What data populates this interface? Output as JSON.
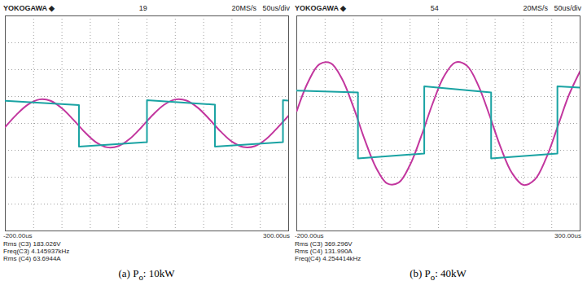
{
  "chart_data": [
    {
      "type": "line",
      "header": {
        "brand": "YOKOGAWA ◆",
        "record": "19",
        "sample_rate": "20MS/s",
        "time_div": "50us/div"
      },
      "x_start_label": "-200.00us",
      "x_end_label": "300.00us",
      "measurements": [
        "Rms (C3) 183.026V",
        "Freq(C3) 4.145937kHz",
        "Rms (C4) 63.6944A"
      ],
      "caption": {
        "prefix": "(a) P",
        "subscript": "o",
        "suffix": ": 10kW"
      },
      "xlim": [
        -200,
        300
      ],
      "xticks": [
        -200,
        -150,
        -100,
        -50,
        0,
        50,
        100,
        150,
        200,
        250,
        300
      ],
      "ylim": [
        -4,
        4
      ],
      "yticks": [
        -4,
        -3,
        -2,
        -1,
        0,
        1,
        2,
        3,
        4
      ],
      "grid": true,
      "tick_labels": false,
      "series": [
        {
          "color": "#c2369e",
          "line_style": "smooth",
          "x": [
            -200,
            -180,
            -160,
            -140,
            -120,
            -100,
            -80,
            -60,
            -40,
            -20,
            0,
            20,
            40,
            60,
            80,
            100,
            120,
            140,
            160,
            180,
            200,
            220,
            240,
            260,
            280,
            300
          ],
          "values": [
            -0.13,
            0.33,
            0.7,
            0.89,
            0.84,
            0.56,
            0.14,
            -0.32,
            -0.7,
            -0.89,
            -0.84,
            -0.57,
            -0.15,
            0.31,
            0.69,
            0.89,
            0.85,
            0.58,
            0.16,
            -0.3,
            -0.68,
            -0.88,
            -0.85,
            -0.59,
            -0.17,
            0.29
          ]
        },
        {
          "color": "#1aa3a3",
          "line_style": "linear",
          "x": [
            -200,
            -70,
            -70,
            50,
            50,
            170,
            170,
            290,
            290,
            300
          ],
          "values": [
            0.84,
            0.68,
            -0.86,
            -0.7,
            0.86,
            0.7,
            -0.86,
            -0.7,
            0.86,
            0.85
          ]
        }
      ]
    },
    {
      "type": "line",
      "header": {
        "brand": "YOKOGAWA ◆",
        "record": "54",
        "sample_rate": "20MS/s",
        "time_div": "50us/div"
      },
      "x_start_label": "-200.00us",
      "x_end_label": "300.00us",
      "measurements": [
        "Rms (C3) 369.296V",
        "Rms (C4) 131.990A",
        "Freq(C4) 4.254414kHz"
      ],
      "caption": {
        "prefix": "(b) P",
        "subscript": "o",
        "suffix": ": 40kW"
      },
      "xlim": [
        -200,
        300
      ],
      "xticks": [
        -200,
        -150,
        -100,
        -50,
        0,
        50,
        100,
        150,
        200,
        250,
        300
      ],
      "ylim": [
        -4,
        4
      ],
      "yticks": [
        -4,
        -3,
        -2,
        -1,
        0,
        1,
        2,
        3,
        4
      ],
      "grid": true,
      "tick_labels": false,
      "series": [
        {
          "color": "#c2369e",
          "line_style": "smooth",
          "x": [
            -200,
            -180,
            -160,
            -140,
            -120,
            -100,
            -80,
            -60,
            -40,
            -20,
            0,
            20,
            40,
            60,
            80,
            100,
            120,
            140,
            160,
            180,
            200,
            220,
            240,
            260,
            280,
            300
          ],
          "values": [
            0.46,
            1.54,
            2.2,
            2.24,
            1.65,
            0.61,
            -0.61,
            -1.65,
            -2.24,
            -2.2,
            -1.54,
            -0.46,
            0.75,
            1.76,
            2.27,
            2.15,
            1.43,
            0.31,
            -0.9,
            -1.85,
            -2.29,
            -2.09,
            -1.3,
            -0.15,
            1.04,
            1.94
          ]
        },
        {
          "color": "#1aa3a3",
          "line_style": "linear",
          "x": [
            -200,
            -92,
            -92,
            25,
            25,
            143,
            143,
            260,
            260,
            300
          ],
          "values": [
            1.22,
            1.15,
            -1.3,
            -1.12,
            1.38,
            1.15,
            -1.3,
            -1.12,
            1.38,
            1.33
          ]
        }
      ]
    }
  ]
}
